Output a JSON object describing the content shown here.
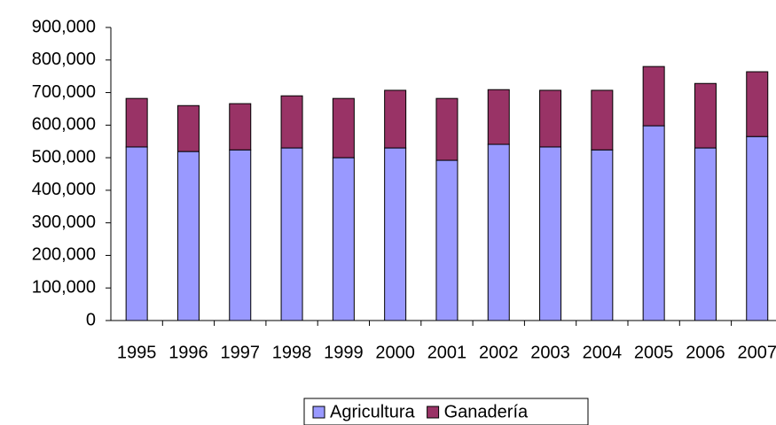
{
  "chart_data": {
    "type": "stacked_bar",
    "categories": [
      "1995",
      "1996",
      "1997",
      "1998",
      "1999",
      "2000",
      "2001",
      "2002",
      "2003",
      "2004",
      "2005",
      "2006",
      "2007"
    ],
    "series": [
      {
        "name": "Agricultura",
        "color": "#9999ff",
        "values": [
          533000,
          519000,
          524000,
          530000,
          500000,
          530000,
          492000,
          541000,
          533000,
          524000,
          598000,
          530000,
          565000
        ]
      },
      {
        "name": "Ganadería",
        "color": "#993366",
        "values": [
          149000,
          141000,
          142000,
          160000,
          182000,
          177000,
          190000,
          168000,
          174000,
          183000,
          182000,
          198000,
          199000
        ]
      }
    ],
    "ylim": [
      0,
      900000
    ],
    "yticks": [
      0,
      {
        "value": 100000,
        "label": "100,000"
      },
      {
        "value": 200000,
        "label": "200,000"
      },
      {
        "value": 300000,
        "label": "300,000"
      },
      {
        "value": 400000,
        "label": "400,000"
      },
      {
        "value": 500000,
        "label": "500,000"
      },
      {
        "value": 600000,
        "label": "600,000"
      },
      {
        "value": 700000,
        "label": "700,000"
      },
      {
        "value": 800000,
        "label": "800,000"
      },
      {
        "value": 900000,
        "label": "900,000"
      }
    ],
    "legend": "bottom"
  }
}
